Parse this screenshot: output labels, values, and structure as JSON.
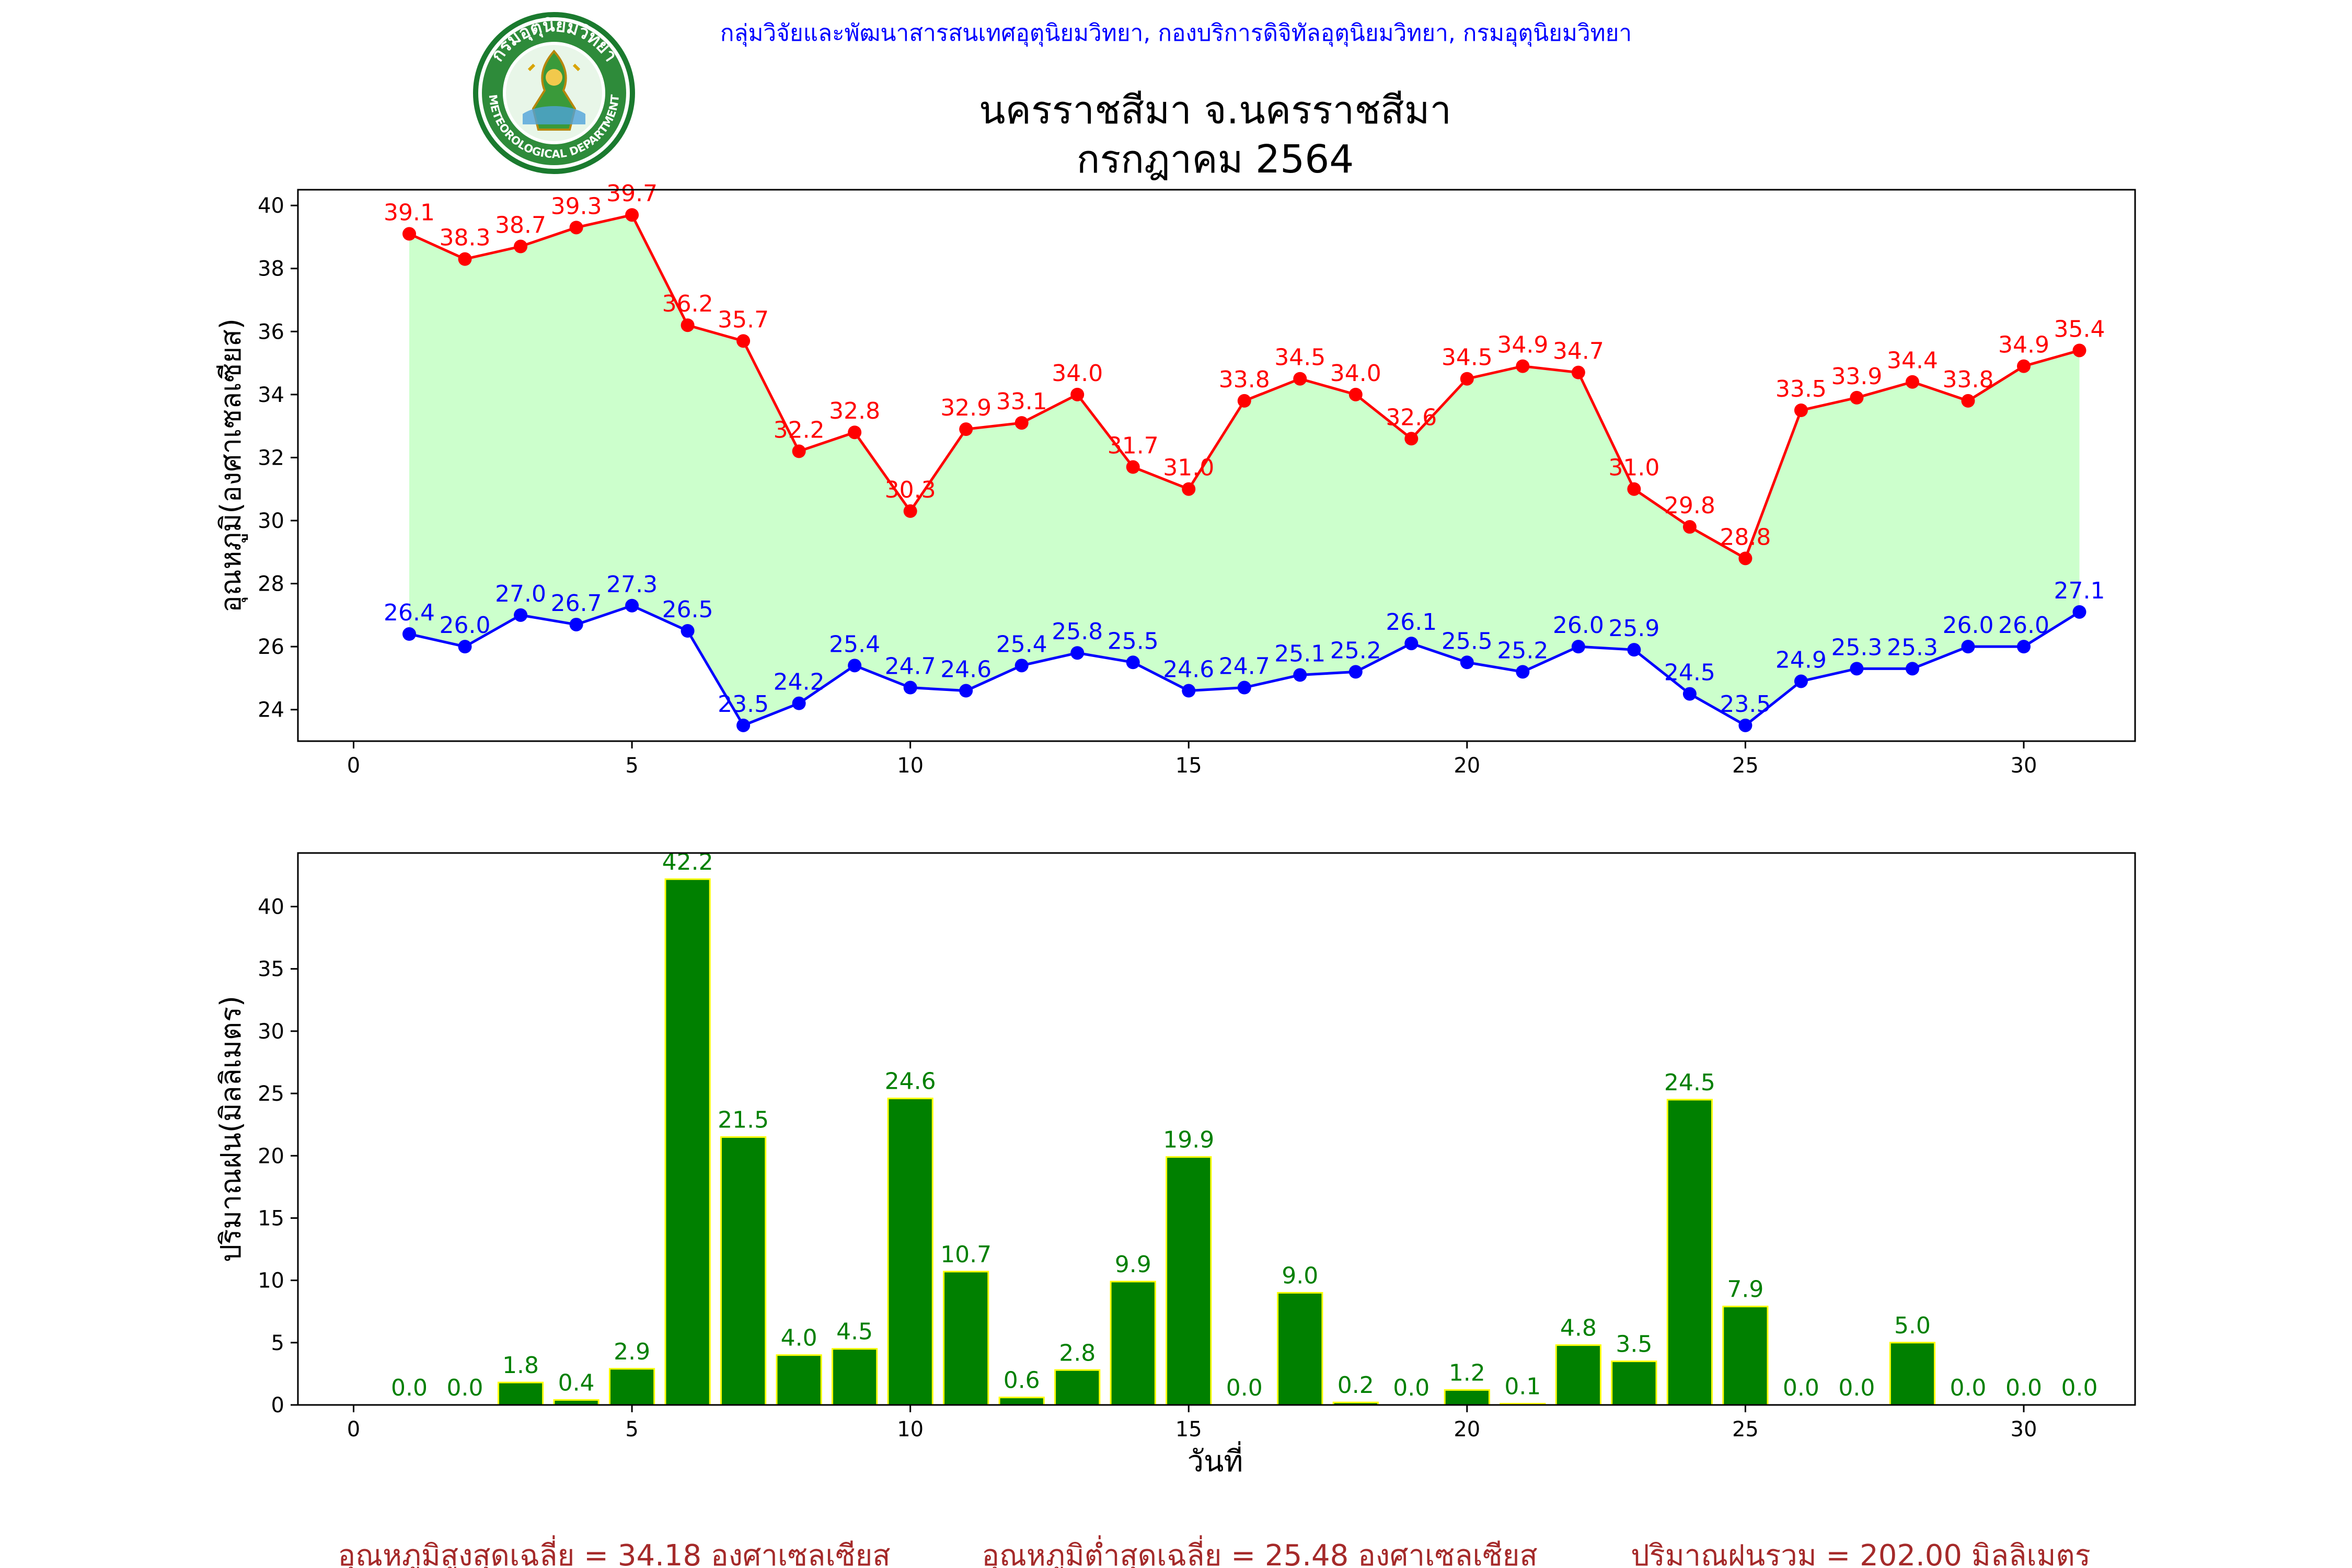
{
  "header": {
    "org_line": "กลุ่มวิจัยและพัฒนาสารสนเทศอุตุนิยมวิทยา, กองบริการดิจิทัลอุตุนิยมวิทยา, กรมอุตุนิยมวิทยา",
    "org_color": "#0000ff",
    "title_line1": "นครราชสีมา จ.นครราชสีมา",
    "title_line2": "กรกฎาคม 2564",
    "logo": {
      "icon": "meteorological-department-seal",
      "ring_text": "กรมอุตุนิยมวิทยา",
      "ring_text_bottom": "METEOROLOGICAL DEPARTMENT"
    }
  },
  "chart_data": [
    {
      "type": "line",
      "ylabel": "อุณหภูมิ(องศาเซลเซียส)",
      "xlabel": "",
      "xlim": [
        -1,
        32
      ],
      "ylim": [
        23,
        40.5
      ],
      "xticks": [
        0,
        5,
        10,
        15,
        20,
        25,
        30
      ],
      "yticks": [
        24,
        26,
        28,
        30,
        32,
        34,
        36,
        38,
        40
      ],
      "x": [
        1,
        2,
        3,
        4,
        5,
        6,
        7,
        8,
        9,
        10,
        11,
        12,
        13,
        14,
        15,
        16,
        17,
        18,
        19,
        20,
        21,
        22,
        23,
        24,
        25,
        26,
        27,
        28,
        29,
        30,
        31
      ],
      "fill_between": {
        "color": "#ccffcc"
      },
      "series": [
        {
          "key": "max",
          "color": "#ff0000",
          "values": [
            39.1,
            38.3,
            38.7,
            39.3,
            39.7,
            36.2,
            35.7,
            32.2,
            32.8,
            30.3,
            32.9,
            33.1,
            34.0,
            31.7,
            31.0,
            33.8,
            34.5,
            34.0,
            32.6,
            34.5,
            34.9,
            34.7,
            31.0,
            29.8,
            28.8,
            33.5,
            33.9,
            34.4,
            33.8,
            34.9,
            35.4
          ]
        },
        {
          "key": "min",
          "color": "#0000ff",
          "values": [
            26.4,
            26.0,
            27.0,
            26.7,
            27.3,
            26.5,
            23.5,
            24.2,
            25.4,
            24.7,
            24.6,
            25.4,
            25.8,
            25.5,
            24.6,
            24.7,
            25.1,
            25.2,
            26.1,
            25.5,
            25.2,
            26.0,
            25.9,
            24.5,
            23.5,
            24.9,
            25.3,
            25.3,
            26.0,
            26.0,
            27.1
          ]
        }
      ],
      "grid": false
    },
    {
      "type": "bar",
      "ylabel": "ปริมาณฝน(มิลลิเมตร)",
      "xlabel": "วันที่",
      "xlim": [
        -1,
        32
      ],
      "ylim": [
        0,
        44.3
      ],
      "xticks": [
        0,
        5,
        10,
        15,
        20,
        25,
        30
      ],
      "yticks": [
        0,
        5,
        10,
        15,
        20,
        25,
        30,
        35,
        40
      ],
      "bar_color": "#008000",
      "bar_edge_color": "#ffff00",
      "label_color": "#008000",
      "categories": [
        1,
        2,
        3,
        4,
        5,
        6,
        7,
        8,
        9,
        10,
        11,
        12,
        13,
        14,
        15,
        16,
        17,
        18,
        19,
        20,
        21,
        22,
        23,
        24,
        25,
        26,
        27,
        28,
        29,
        30,
        31
      ],
      "values": [
        0.0,
        0.0,
        1.8,
        0.4,
        2.9,
        42.2,
        21.5,
        4.0,
        4.5,
        24.6,
        10.7,
        0.6,
        2.8,
        9.9,
        19.9,
        0.0,
        9.0,
        0.2,
        0.0,
        1.2,
        0.1,
        4.8,
        3.5,
        24.5,
        7.9,
        0.0,
        0.0,
        5.0,
        0.0,
        0.0,
        0.0
      ],
      "grid": false
    }
  ],
  "footer": {
    "color": "#a52a2a",
    "avg_max": "อุณหภูมิสูงสุดเฉลี่ย = 34.18 องศาเซลเซียส",
    "avg_min": "อุณหภูมิต่ำสุดเฉลี่ย = 25.48 องศาเซลเซียส",
    "total_rain": "ปริมาณฝนรวม = 202.00 มิลลิเมตร"
  }
}
